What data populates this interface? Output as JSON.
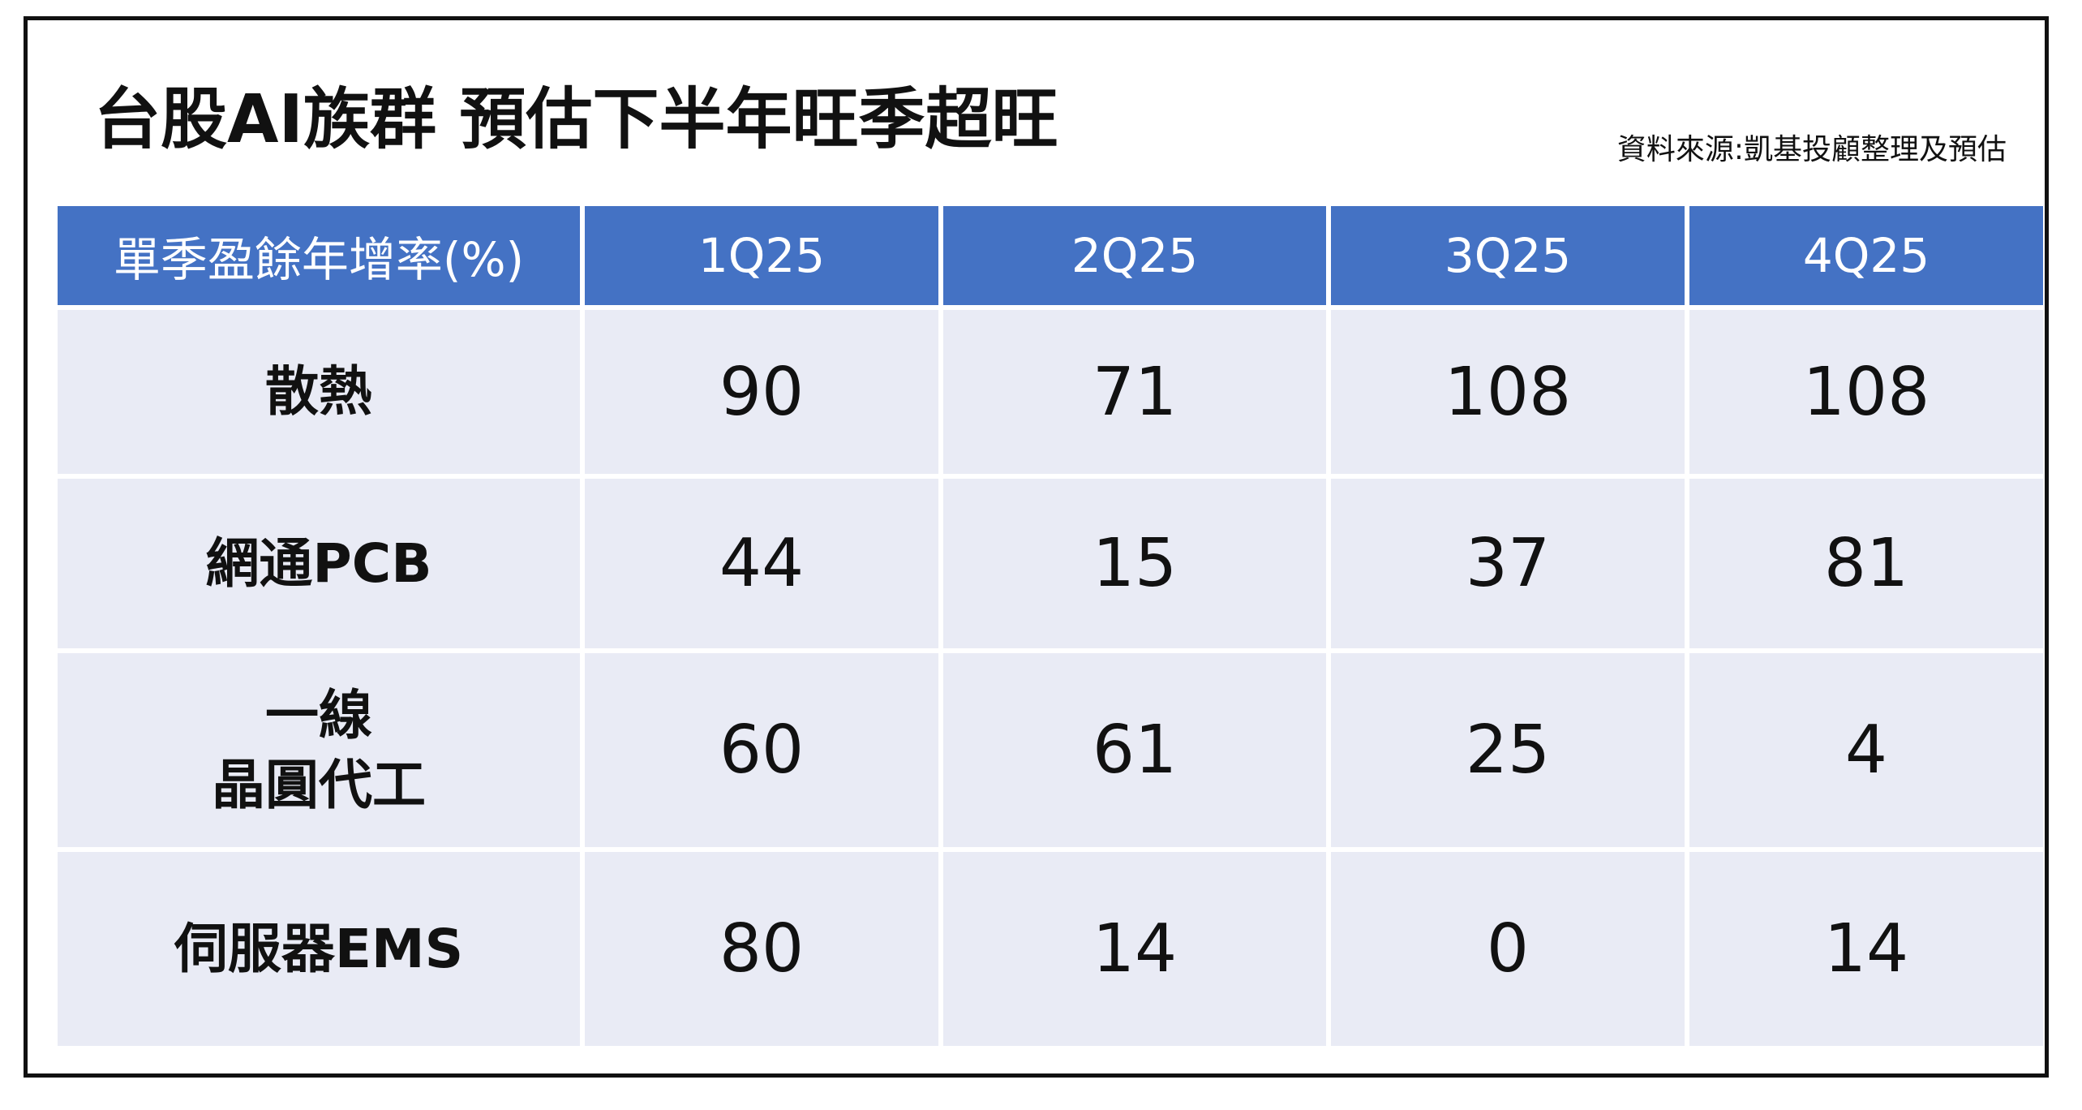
{
  "header": {
    "title": "台股AI族群 預估下半年旺季超旺",
    "source": "資料來源:凱基投顧整理及預估"
  },
  "table": {
    "columns": [
      "單季盈餘年增率(%)",
      "1Q25",
      "2Q25",
      "3Q25",
      "4Q25"
    ],
    "rows": [
      {
        "label": [
          "散熱"
        ],
        "values": [
          90,
          71,
          108,
          108
        ]
      },
      {
        "label": [
          "網通PCB"
        ],
        "values": [
          44,
          15,
          37,
          81
        ]
      },
      {
        "label": [
          "一線",
          "晶圓代工"
        ],
        "values": [
          60,
          61,
          25,
          4
        ]
      },
      {
        "label": [
          "伺服器EMS"
        ],
        "values": [
          80,
          14,
          0,
          14
        ]
      }
    ]
  }
}
